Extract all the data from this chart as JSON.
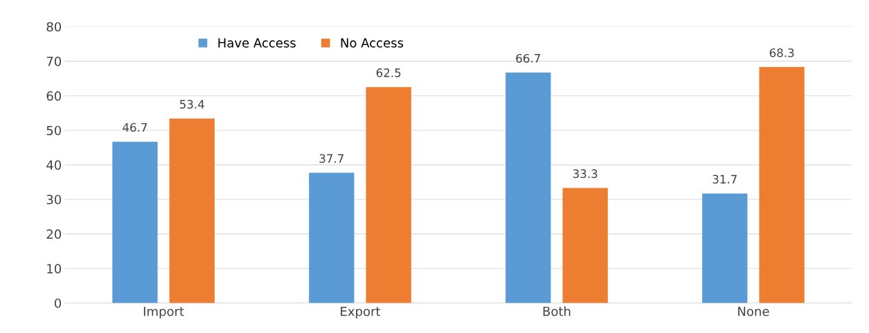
{
  "chart_data": {
    "type": "bar",
    "categories": [
      "Import",
      "Export",
      "Both",
      "None"
    ],
    "series": [
      {
        "name": "Have Access",
        "color": "#5b9bd5",
        "values": [
          46.7,
          37.7,
          66.7,
          31.7
        ]
      },
      {
        "name": "No Access",
        "color": "#ed7d31",
        "values": [
          53.4,
          62.5,
          33.3,
          68.3
        ]
      }
    ],
    "ylim": [
      0,
      80
    ],
    "yticks": [
      0,
      10,
      20,
      30,
      40,
      50,
      60,
      70,
      80
    ],
    "grid": "y",
    "legend": "top",
    "data_labels": true
  }
}
